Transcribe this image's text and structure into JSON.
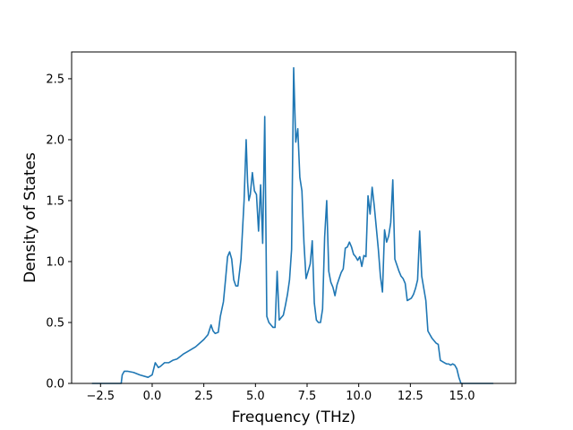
{
  "chart_data": {
    "type": "line",
    "title": "",
    "xlabel": "Frequency (THz)",
    "ylabel": "Density of States",
    "xlim": [
      -3.9,
      17.6
    ],
    "ylim": [
      0.0,
      2.72
    ],
    "xticks": [
      -2.5,
      0.0,
      2.5,
      5.0,
      7.5,
      10.0,
      12.5,
      15.0
    ],
    "xtick_labels": [
      "−2.5",
      "0.0",
      "2.5",
      "5.0",
      "7.5",
      "10.0",
      "12.5",
      "15.0"
    ],
    "yticks": [
      0.0,
      0.5,
      1.0,
      1.5,
      2.0,
      2.5
    ],
    "ytick_labels": [
      "0.0",
      "0.5",
      "1.0",
      "1.5",
      "2.0",
      "2.5"
    ],
    "grid": false,
    "legend": "none",
    "line_color": "#1f77b4",
    "series": [
      {
        "x": [
          -2.9,
          -1.9,
          -1.5,
          -1.45,
          -1.35,
          -1.2,
          -0.9,
          -0.6,
          -0.2,
          0.0,
          0.15,
          0.3,
          0.4,
          0.6,
          0.8,
          1.0,
          1.2,
          1.35,
          1.5,
          1.7,
          1.9,
          2.1,
          2.3,
          2.5,
          2.7,
          2.85,
          2.95,
          3.05,
          3.2,
          3.3,
          3.45,
          3.55,
          3.65,
          3.75,
          3.85,
          3.95,
          4.05,
          4.15,
          4.3,
          4.45,
          4.55,
          4.62,
          4.68,
          4.75,
          4.85,
          4.95,
          5.05,
          5.15,
          5.25,
          5.35,
          5.45,
          5.55,
          5.65,
          5.75,
          5.85,
          5.95,
          6.05,
          6.15,
          6.25,
          6.35,
          6.45,
          6.55,
          6.65,
          6.75,
          6.85,
          6.95,
          7.05,
          7.15,
          7.25,
          7.35,
          7.45,
          7.55,
          7.65,
          7.75,
          7.85,
          7.95,
          8.05,
          8.15,
          8.25,
          8.35,
          8.45,
          8.55,
          8.65,
          8.75,
          8.85,
          8.95,
          9.05,
          9.15,
          9.25,
          9.35,
          9.45,
          9.55,
          9.65,
          9.75,
          9.85,
          9.95,
          10.05,
          10.15,
          10.25,
          10.35,
          10.45,
          10.55,
          10.65,
          10.75,
          10.85,
          10.95,
          11.05,
          11.15,
          11.25,
          11.35,
          11.45,
          11.55,
          11.65,
          11.75,
          11.85,
          11.95,
          12.05,
          12.15,
          12.25,
          12.35,
          12.45,
          12.55,
          12.65,
          12.75,
          12.85,
          12.95,
          13.05,
          13.15,
          13.25,
          13.35,
          13.45,
          13.55,
          13.65,
          13.75,
          13.85,
          13.95,
          14.05,
          14.15,
          14.25,
          14.35,
          14.45,
          14.55,
          14.65,
          14.75,
          14.85,
          14.95,
          15.05,
          15.3,
          16.5
        ],
        "y": [
          0.0,
          0.0,
          0.0,
          0.07,
          0.1,
          0.1,
          0.09,
          0.07,
          0.05,
          0.07,
          0.17,
          0.13,
          0.14,
          0.17,
          0.17,
          0.19,
          0.2,
          0.22,
          0.24,
          0.26,
          0.28,
          0.3,
          0.33,
          0.36,
          0.4,
          0.48,
          0.43,
          0.41,
          0.42,
          0.55,
          0.67,
          0.85,
          1.04,
          1.08,
          1.02,
          0.85,
          0.8,
          0.8,
          1.02,
          1.5,
          2.0,
          1.65,
          1.5,
          1.55,
          1.73,
          1.58,
          1.55,
          1.25,
          1.63,
          1.15,
          2.19,
          0.55,
          0.5,
          0.48,
          0.46,
          0.46,
          0.92,
          0.52,
          0.54,
          0.56,
          0.64,
          0.73,
          0.85,
          1.1,
          2.59,
          1.98,
          2.09,
          1.69,
          1.58,
          1.15,
          0.86,
          0.92,
          0.98,
          1.17,
          0.66,
          0.52,
          0.5,
          0.5,
          0.61,
          1.2,
          1.5,
          0.92,
          0.83,
          0.79,
          0.72,
          0.81,
          0.86,
          0.91,
          0.94,
          1.11,
          1.12,
          1.16,
          1.12,
          1.06,
          1.04,
          1.01,
          1.04,
          0.96,
          1.05,
          1.04,
          1.54,
          1.39,
          1.61,
          1.46,
          1.28,
          1.1,
          0.88,
          0.75,
          1.26,
          1.16,
          1.21,
          1.32,
          1.67,
          1.02,
          0.97,
          0.92,
          0.88,
          0.86,
          0.82,
          0.68,
          0.69,
          0.7,
          0.73,
          0.78,
          0.85,
          1.25,
          0.88,
          0.78,
          0.68,
          0.43,
          0.4,
          0.37,
          0.35,
          0.33,
          0.32,
          0.19,
          0.18,
          0.17,
          0.16,
          0.16,
          0.15,
          0.16,
          0.15,
          0.12,
          0.05,
          0.0,
          0.0,
          0.0,
          0.0
        ]
      }
    ]
  }
}
